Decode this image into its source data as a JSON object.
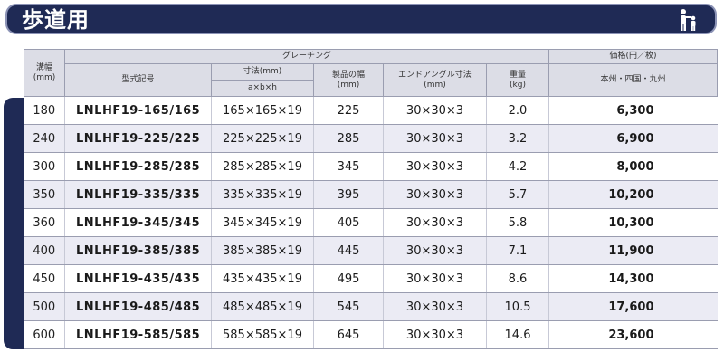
{
  "banner": {
    "title": "歩道用",
    "icon": "pedestrian-icon"
  },
  "headers": {
    "width": "溝幅\n(mm)",
    "grating": "グレーチング",
    "price_group": "価格(円／枚)",
    "model": "型式記号",
    "dimension": "寸法(mm)",
    "dimension_sub": "a×b×h",
    "product_width": "製品の幅\n(mm)",
    "angle": "エンドアングル寸法\n(mm)",
    "weight": "重量\n(kg)",
    "region": "本州・四国・九州"
  },
  "rows": [
    {
      "width": "180",
      "model": "LNLHF19-165/165",
      "dimension": "165×165×19",
      "product_width": "225",
      "angle": "30×30×3",
      "weight": "2.0",
      "price": "6,300"
    },
    {
      "width": "240",
      "model": "LNLHF19-225/225",
      "dimension": "225×225×19",
      "product_width": "285",
      "angle": "30×30×3",
      "weight": "3.2",
      "price": "6,900"
    },
    {
      "width": "300",
      "model": "LNLHF19-285/285",
      "dimension": "285×285×19",
      "product_width": "345",
      "angle": "30×30×3",
      "weight": "4.2",
      "price": "8,000"
    },
    {
      "width": "350",
      "model": "LNLHF19-335/335",
      "dimension": "335×335×19",
      "product_width": "395",
      "angle": "30×30×3",
      "weight": "5.7",
      "price": "10,200"
    },
    {
      "width": "360",
      "model": "LNLHF19-345/345",
      "dimension": "345×345×19",
      "product_width": "405",
      "angle": "30×30×3",
      "weight": "5.8",
      "price": "10,300"
    },
    {
      "width": "400",
      "model": "LNLHF19-385/385",
      "dimension": "385×385×19",
      "product_width": "445",
      "angle": "30×30×3",
      "weight": "7.1",
      "price": "11,900"
    },
    {
      "width": "450",
      "model": "LNLHF19-435/435",
      "dimension": "435×435×19",
      "product_width": "495",
      "angle": "30×30×3",
      "weight": "8.6",
      "price": "14,300"
    },
    {
      "width": "500",
      "model": "LNLHF19-485/485",
      "dimension": "485×485×19",
      "product_width": "545",
      "angle": "30×30×3",
      "weight": "10.5",
      "price": "17,600"
    },
    {
      "width": "600",
      "model": "LNLHF19-585/585",
      "dimension": "585×585×19",
      "product_width": "645",
      "angle": "30×30×3",
      "weight": "14.6",
      "price": "23,600"
    }
  ],
  "colors": {
    "banner_bg": "#1f2a55",
    "header_bg": "#dcdde6",
    "row_shade": "#ebebf4"
  }
}
